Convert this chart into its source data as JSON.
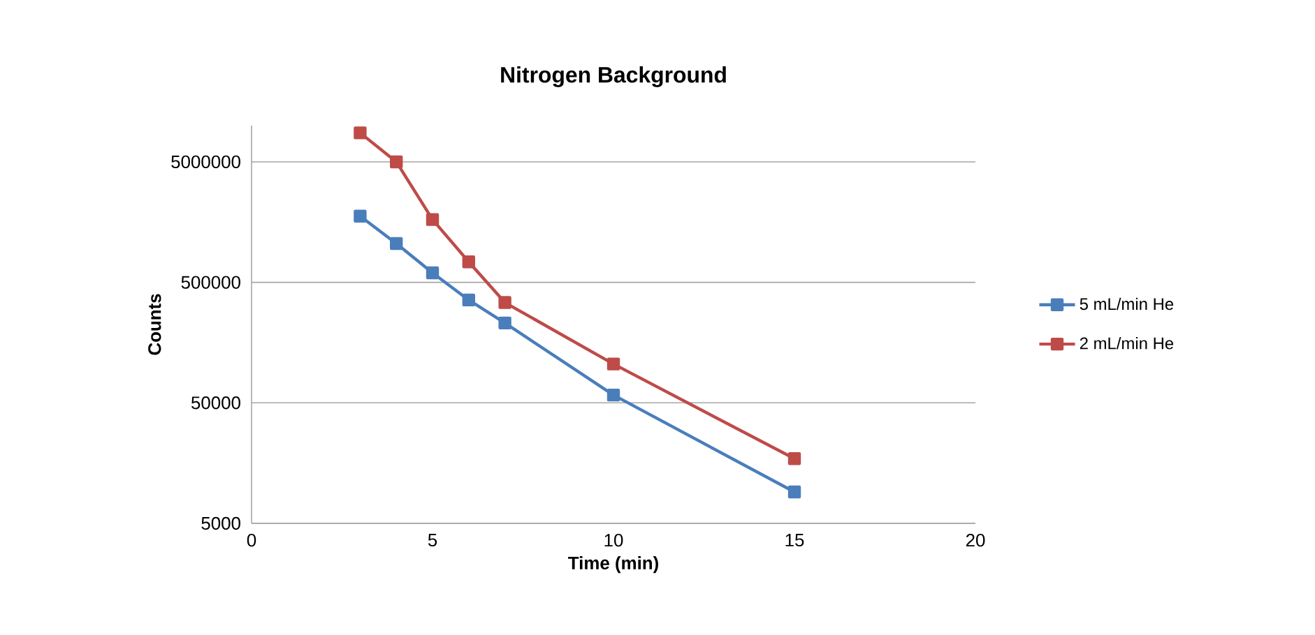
{
  "chart_data": {
    "type": "line",
    "title": "Nitrogen Background",
    "xlabel": "Time (min)",
    "ylabel": "Counts",
    "log": "y",
    "grid": "y",
    "legend": "right",
    "marker": "square",
    "line_style": "solid",
    "xlim": [
      0,
      20
    ],
    "xticks": [
      0,
      5,
      10,
      15,
      20
    ],
    "ylim": [
      5000,
      10000000
    ],
    "yticks": [
      5000,
      50000,
      500000,
      5000000
    ],
    "x": [
      3,
      4,
      5,
      6,
      7,
      10,
      15
    ],
    "series": [
      {
        "name": "5 mL/min He",
        "color": "#4a7ebb",
        "values": [
          1770000,
          1050000,
          600000,
          357000,
          230000,
          58000,
          9100
        ]
      },
      {
        "name": "2 mL/min He",
        "color": "#be4b48",
        "values": [
          8700000,
          5000000,
          1660000,
          740000,
          340000,
          105000,
          17200
        ]
      }
    ]
  }
}
